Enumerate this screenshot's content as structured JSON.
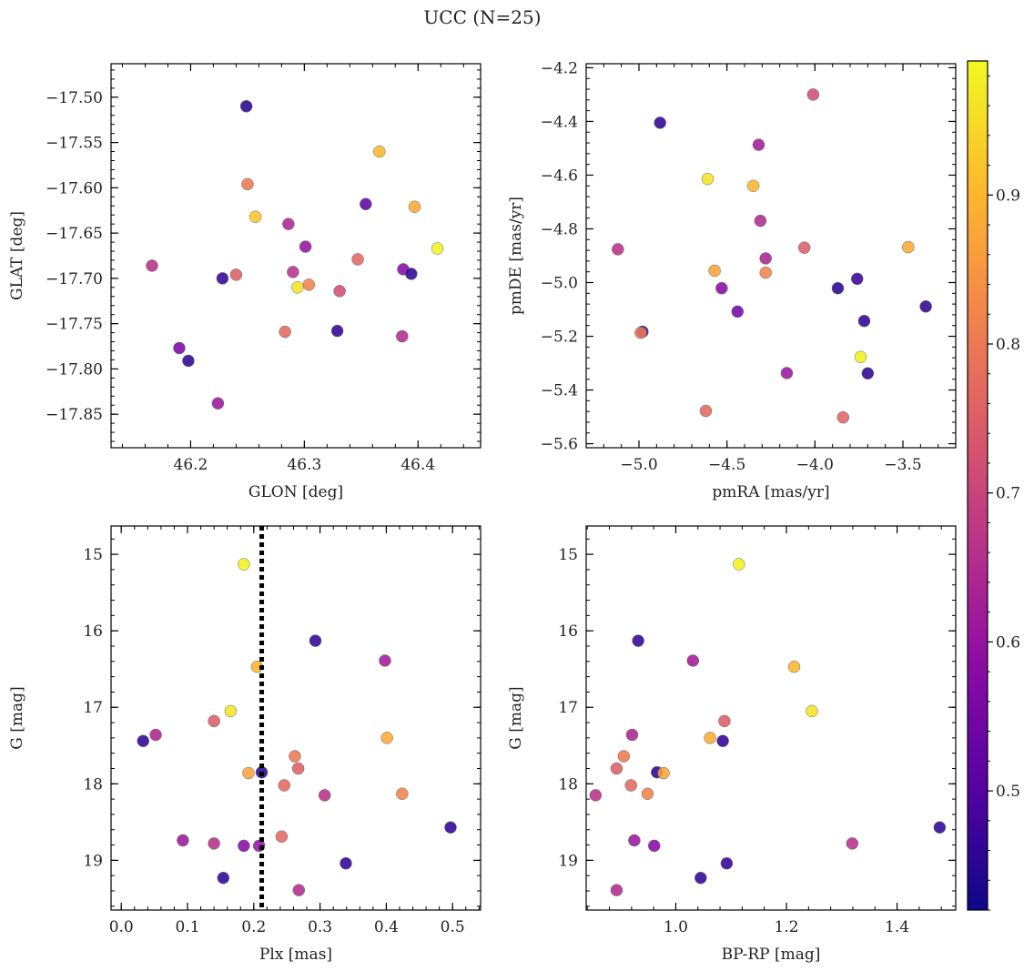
{
  "title": "UCC (N=25)",
  "colorbar": {
    "colormap": "plasma",
    "range": [
      0.42,
      0.99
    ],
    "ticks": [
      "0.5",
      "0.6",
      "0.7",
      "0.8",
      "0.9"
    ],
    "tick_values": [
      0.5,
      0.6,
      0.7,
      0.8,
      0.9
    ]
  },
  "chart_data": [
    {
      "type": "scatter",
      "xlabel": "GLON [deg]",
      "ylabel": "GLAT [deg]",
      "xlim": [
        46.13,
        46.455
      ],
      "ylim": [
        -17.887,
        -17.463
      ],
      "xticks": [
        46.2,
        46.3,
        46.4
      ],
      "xtick_labels": [
        "46.2",
        "46.3",
        "46.4"
      ],
      "yticks": [
        -17.5,
        -17.55,
        -17.6,
        -17.65,
        -17.7,
        -17.75,
        -17.8,
        -17.85
      ],
      "ytick_labels": [
        "−17.50",
        "−17.55",
        "−17.60",
        "−17.65",
        "−17.70",
        "−17.75",
        "−17.80",
        "−17.85"
      ],
      "points": [
        {
          "x": 46.249,
          "y": -17.51,
          "c": 0.45
        },
        {
          "x": 46.366,
          "y": -17.56,
          "c": 0.9
        },
        {
          "x": 46.25,
          "y": -17.596,
          "c": 0.8
        },
        {
          "x": 46.354,
          "y": -17.618,
          "c": 0.52
        },
        {
          "x": 46.397,
          "y": -17.621,
          "c": 0.88
        },
        {
          "x": 46.257,
          "y": -17.632,
          "c": 0.92
        },
        {
          "x": 46.286,
          "y": -17.64,
          "c": 0.64
        },
        {
          "x": 46.417,
          "y": -17.667,
          "c": 0.98
        },
        {
          "x": 46.301,
          "y": -17.665,
          "c": 0.6
        },
        {
          "x": 46.347,
          "y": -17.679,
          "c": 0.77
        },
        {
          "x": 46.166,
          "y": -17.686,
          "c": 0.66
        },
        {
          "x": 46.387,
          "y": -17.69,
          "c": 0.58
        },
        {
          "x": 46.29,
          "y": -17.693,
          "c": 0.66
        },
        {
          "x": 46.394,
          "y": -17.695,
          "c": 0.46
        },
        {
          "x": 46.24,
          "y": -17.696,
          "c": 0.75
        },
        {
          "x": 46.228,
          "y": -17.7,
          "c": 0.47
        },
        {
          "x": 46.304,
          "y": -17.707,
          "c": 0.82
        },
        {
          "x": 46.294,
          "y": -17.71,
          "c": 0.96
        },
        {
          "x": 46.331,
          "y": -17.714,
          "c": 0.72
        },
        {
          "x": 46.329,
          "y": -17.758,
          "c": 0.46
        },
        {
          "x": 46.283,
          "y": -17.759,
          "c": 0.77
        },
        {
          "x": 46.386,
          "y": -17.764,
          "c": 0.65
        },
        {
          "x": 46.19,
          "y": -17.777,
          "c": 0.56
        },
        {
          "x": 46.198,
          "y": -17.791,
          "c": 0.46
        },
        {
          "x": 46.224,
          "y": -17.838,
          "c": 0.61
        }
      ]
    },
    {
      "type": "scatter",
      "xlabel": "pmRA [mas/yr]",
      "ylabel": "pmDE [mas/yr]",
      "xlim": [
        -5.3,
        -3.2
      ],
      "ylim": [
        -5.615,
        -4.185
      ],
      "xticks": [
        -5.0,
        -4.5,
        -4.0,
        -3.5
      ],
      "xtick_labels": [
        "−5.0",
        "−4.5",
        "−4.0",
        "−3.5"
      ],
      "yticks": [
        -4.2,
        -4.4,
        -4.6,
        -4.8,
        -5.0,
        -5.2,
        -5.4,
        -5.6
      ],
      "ytick_labels": [
        "−4.2",
        "−4.4",
        "−4.6",
        "−4.8",
        "−5.0",
        "−5.2",
        "−5.4",
        "−5.6"
      ],
      "points": [
        {
          "x": -4.01,
          "y": -4.3,
          "c": 0.72
        },
        {
          "x": -4.88,
          "y": -4.405,
          "c": 0.46
        },
        {
          "x": -4.32,
          "y": -4.487,
          "c": 0.62
        },
        {
          "x": -4.61,
          "y": -4.614,
          "c": 0.96
        },
        {
          "x": -4.35,
          "y": -4.64,
          "c": 0.9
        },
        {
          "x": -4.31,
          "y": -4.77,
          "c": 0.65
        },
        {
          "x": -5.12,
          "y": -4.876,
          "c": 0.66
        },
        {
          "x": -4.06,
          "y": -4.87,
          "c": 0.75
        },
        {
          "x": -3.47,
          "y": -4.868,
          "c": 0.88
        },
        {
          "x": -4.28,
          "y": -4.91,
          "c": 0.64
        },
        {
          "x": -4.57,
          "y": -4.956,
          "c": 0.87
        },
        {
          "x": -4.28,
          "y": -4.963,
          "c": 0.82
        },
        {
          "x": -3.76,
          "y": -4.986,
          "c": 0.47
        },
        {
          "x": -4.53,
          "y": -5.021,
          "c": 0.58
        },
        {
          "x": -3.87,
          "y": -5.021,
          "c": 0.45
        },
        {
          "x": -4.44,
          "y": -5.108,
          "c": 0.55
        },
        {
          "x": -3.37,
          "y": -5.089,
          "c": 0.46
        },
        {
          "x": -3.72,
          "y": -5.143,
          "c": 0.46
        },
        {
          "x": -4.98,
          "y": -5.183,
          "c": 0.48
        },
        {
          "x": -4.99,
          "y": -5.187,
          "c": 0.8
        },
        {
          "x": -3.74,
          "y": -5.277,
          "c": 0.98
        },
        {
          "x": -4.16,
          "y": -5.337,
          "c": 0.61
        },
        {
          "x": -3.7,
          "y": -5.338,
          "c": 0.46
        },
        {
          "x": -4.62,
          "y": -5.478,
          "c": 0.77
        },
        {
          "x": -3.84,
          "y": -5.502,
          "c": 0.76
        }
      ]
    },
    {
      "type": "scatter",
      "xlabel": "Plx [mas]",
      "ylabel": "G [mag]",
      "xlim": [
        -0.0154,
        0.5423
      ],
      "ylim": [
        19.65,
        14.63
      ],
      "xticks": [
        0.0,
        0.1,
        0.2,
        0.3,
        0.4,
        0.5
      ],
      "xtick_labels": [
        "0.0",
        "0.1",
        "0.2",
        "0.3",
        "0.4",
        "0.5"
      ],
      "yticks": [
        15,
        16,
        17,
        18,
        19
      ],
      "ytick_labels": [
        "15",
        "16",
        "17",
        "18",
        "19"
      ],
      "vline": {
        "x": 0.212,
        "style": "dotted",
        "color": "#000000"
      },
      "points": [
        {
          "x": 0.185,
          "y": 15.13,
          "c": 0.98
        },
        {
          "x": 0.293,
          "y": 16.13,
          "c": 0.46
        },
        {
          "x": 0.398,
          "y": 16.39,
          "c": 0.62
        },
        {
          "x": 0.205,
          "y": 16.47,
          "c": 0.9
        },
        {
          "x": 0.165,
          "y": 17.05,
          "c": 0.96
        },
        {
          "x": 0.14,
          "y": 17.18,
          "c": 0.75
        },
        {
          "x": 0.052,
          "y": 17.36,
          "c": 0.64
        },
        {
          "x": 0.033,
          "y": 17.44,
          "c": 0.46
        },
        {
          "x": 0.401,
          "y": 17.4,
          "c": 0.88
        },
        {
          "x": 0.262,
          "y": 17.64,
          "c": 0.8
        },
        {
          "x": 0.267,
          "y": 17.8,
          "c": 0.75
        },
        {
          "x": 0.192,
          "y": 17.86,
          "c": 0.87
        },
        {
          "x": 0.212,
          "y": 17.85,
          "c": 0.45
        },
        {
          "x": 0.246,
          "y": 18.02,
          "c": 0.77
        },
        {
          "x": 0.307,
          "y": 18.15,
          "c": 0.66
        },
        {
          "x": 0.424,
          "y": 18.13,
          "c": 0.82
        },
        {
          "x": 0.497,
          "y": 18.57,
          "c": 0.46
        },
        {
          "x": 0.242,
          "y": 18.69,
          "c": 0.77
        },
        {
          "x": 0.093,
          "y": 18.74,
          "c": 0.61
        },
        {
          "x": 0.14,
          "y": 18.78,
          "c": 0.66
        },
        {
          "x": 0.185,
          "y": 18.81,
          "c": 0.58
        },
        {
          "x": 0.208,
          "y": 18.81,
          "c": 0.6
        },
        {
          "x": 0.339,
          "y": 19.04,
          "c": 0.46
        },
        {
          "x": 0.154,
          "y": 19.23,
          "c": 0.46
        },
        {
          "x": 0.268,
          "y": 19.39,
          "c": 0.65
        }
      ]
    },
    {
      "type": "scatter",
      "xlabel": "BP-RP [mag]",
      "ylabel": "G [mag]",
      "xlim": [
        0.838,
        1.506
      ],
      "ylim": [
        19.65,
        14.63
      ],
      "xticks": [
        1.0,
        1.2,
        1.4
      ],
      "xtick_labels": [
        "1.0",
        "1.2",
        "1.4"
      ],
      "yticks": [
        15,
        16,
        17,
        18,
        19
      ],
      "ytick_labels": [
        "15",
        "16",
        "17",
        "18",
        "19"
      ],
      "points": [
        {
          "x": 1.114,
          "y": 15.13,
          "c": 0.98
        },
        {
          "x": 0.932,
          "y": 16.13,
          "c": 0.46
        },
        {
          "x": 1.031,
          "y": 16.39,
          "c": 0.62
        },
        {
          "x": 1.214,
          "y": 16.47,
          "c": 0.9
        },
        {
          "x": 1.246,
          "y": 17.05,
          "c": 0.96
        },
        {
          "x": 1.088,
          "y": 17.18,
          "c": 0.75
        },
        {
          "x": 0.921,
          "y": 17.36,
          "c": 0.64
        },
        {
          "x": 1.085,
          "y": 17.44,
          "c": 0.46
        },
        {
          "x": 1.062,
          "y": 17.4,
          "c": 0.88
        },
        {
          "x": 0.906,
          "y": 17.64,
          "c": 0.8
        },
        {
          "x": 0.893,
          "y": 17.8,
          "c": 0.75
        },
        {
          "x": 0.966,
          "y": 17.85,
          "c": 0.45
        },
        {
          "x": 0.978,
          "y": 17.86,
          "c": 0.87
        },
        {
          "x": 0.919,
          "y": 18.02,
          "c": 0.77
        },
        {
          "x": 0.855,
          "y": 18.15,
          "c": 0.66
        },
        {
          "x": 0.949,
          "y": 18.13,
          "c": 0.82
        },
        {
          "x": 1.477,
          "y": 18.57,
          "c": 0.46
        },
        {
          "x": 0.925,
          "y": 18.74,
          "c": 0.61
        },
        {
          "x": 1.319,
          "y": 18.78,
          "c": 0.66
        },
        {
          "x": 0.961,
          "y": 18.81,
          "c": 0.58
        },
        {
          "x": 1.092,
          "y": 19.04,
          "c": 0.46
        },
        {
          "x": 1.045,
          "y": 19.23,
          "c": 0.46
        },
        {
          "x": 0.893,
          "y": 19.39,
          "c": 0.65
        }
      ]
    }
  ]
}
